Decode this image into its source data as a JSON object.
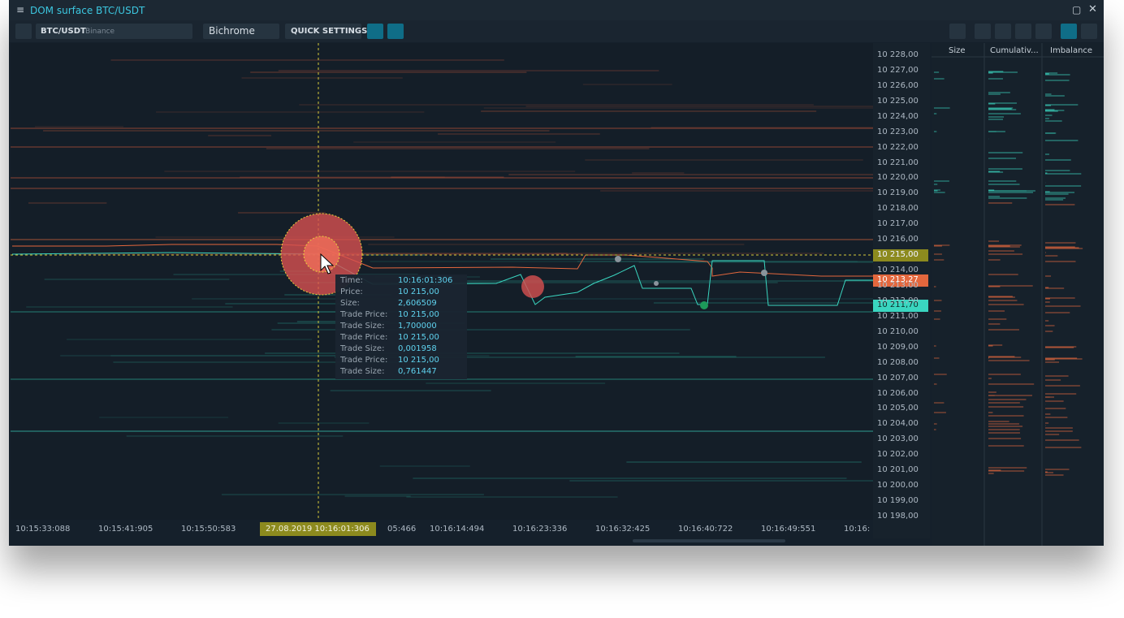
{
  "window": {
    "title": "DOM surface BTC/USDT"
  },
  "toolbar": {
    "symbol": "BTC/USDT",
    "exchange": "Binance",
    "color_scheme": "Bichrome",
    "quick_settings": "QUICK SETTINGS"
  },
  "price_axis": {
    "labels": [
      "10 228,00",
      "10 227,00",
      "10 226,00",
      "10 225,00",
      "10 224,00",
      "10 223,00",
      "10 222,00",
      "10 221,00",
      "10 220,00",
      "10 219,00",
      "10 218,00",
      "10 217,00",
      "10 216,00",
      "10 215,00",
      "10 214,00",
      "10 213,00",
      "10 212,00",
      "10 211,00",
      "10 210,00",
      "10 209,00",
      "10 208,00",
      "10 207,00",
      "10 206,00",
      "10 205,00",
      "10 204,00",
      "10 203,00",
      "10 202,00",
      "10 201,00",
      "10 200,00",
      "10 199,00",
      "10 198,00"
    ],
    "markers": [
      "10 215,00",
      "10 213,27",
      "10 211,70"
    ]
  },
  "time_axis": {
    "labels": [
      "10:15:33:088",
      "10:15:41:905",
      "10:15:50:583",
      "27.08.2019 10:16:01:306",
      "05:466",
      "10:16:14:494",
      "10:16:23:336",
      "10:16:32:425",
      "10:16:40:722",
      "10:16:49:551",
      "10:16:"
    ]
  },
  "tooltip": {
    "rows": [
      [
        "Time:",
        "10:16:01:306"
      ],
      [
        "Price:",
        "10 215,00"
      ],
      [
        "Size:",
        "2,606509"
      ],
      [
        "Trade Price:",
        "10 215,00"
      ],
      [
        "Trade Size:",
        "1,700000"
      ],
      [
        "Trade Price:",
        "10 215,00"
      ],
      [
        "Trade Size:",
        "0,001958"
      ],
      [
        "Trade Price:",
        "10 215,00"
      ],
      [
        "Trade Size:",
        "0,761447"
      ]
    ]
  },
  "side_panel": {
    "columns": [
      "Size",
      "Cumulativ...",
      "Imbalance"
    ]
  }
}
